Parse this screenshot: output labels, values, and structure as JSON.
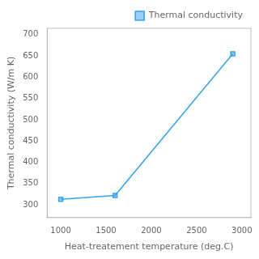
{
  "chart_data": {
    "type": "line",
    "x": [
      1000,
      1600,
      2900
    ],
    "series": [
      {
        "name": "Thermal conductivity",
        "values": [
          313,
          322,
          655
        ],
        "marker": "square"
      }
    ],
    "xlabel": "Heat-treatement temperature (deg.C)",
    "ylabel": "Thermal conductivity (W/m K)",
    "xlim": [
      850,
      3100
    ],
    "ylim": [
      270,
      715
    ],
    "xticks": [
      1000,
      1500,
      2000,
      2500,
      3000
    ],
    "yticks": [
      300,
      350,
      400,
      450,
      500,
      550,
      600,
      650,
      700
    ],
    "grid": false,
    "legend": "upper right"
  }
}
